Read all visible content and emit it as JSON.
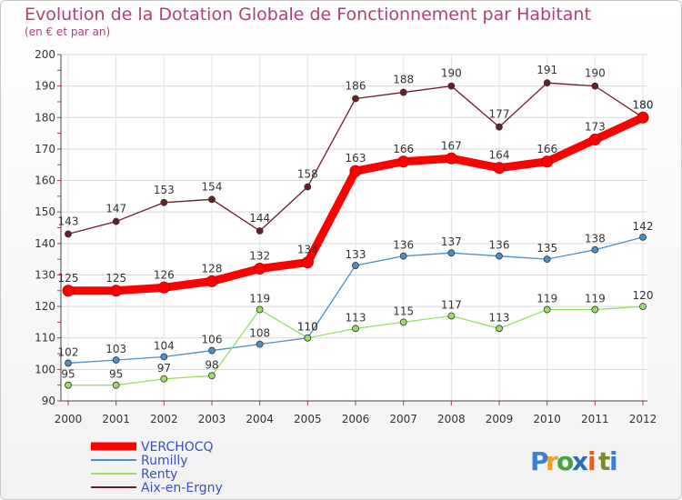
{
  "chart_data": {
    "type": "line",
    "title": "Evolution de la Dotation Globale de Fonctionnement par Habitant",
    "subtitle": "(en € et par an)",
    "xlabel": "",
    "ylabel": "",
    "ylim": [
      90,
      200
    ],
    "yticks": [
      90,
      100,
      110,
      120,
      130,
      140,
      150,
      160,
      170,
      180,
      190,
      200
    ],
    "grid": true,
    "legend_position": "bottom-left",
    "categories": [
      "2000",
      "2001",
      "2002",
      "2003",
      "2004",
      "2005",
      "2006",
      "2007",
      "2008",
      "2009",
      "2010",
      "2011",
      "2012"
    ],
    "series": [
      {
        "name": "VERCHOCQ",
        "color": "#ff0000",
        "values": [
          125,
          125,
          126,
          128,
          132,
          134,
          163,
          166,
          167,
          164,
          166,
          173,
          180
        ]
      },
      {
        "name": "Rumilly",
        "color": "#4a90c8",
        "values": [
          102,
          103,
          104,
          106,
          108,
          110,
          133,
          136,
          137,
          136,
          135,
          138,
          142
        ]
      },
      {
        "name": "Renty",
        "color": "#99dd66",
        "values": [
          95,
          95,
          97,
          98,
          119,
          110,
          113,
          115,
          117,
          113,
          119,
          119,
          120
        ]
      },
      {
        "name": "Aix-en-Ergny",
        "color": "#6b1c24",
        "values": [
          143,
          147,
          153,
          154,
          144,
          158,
          186,
          188,
          190,
          177,
          191,
          190,
          180
        ]
      }
    ]
  },
  "logo": {
    "letters": [
      "P",
      "r",
      "o",
      "x",
      "i",
      "t",
      "i"
    ],
    "colors": [
      "#3a7fd5",
      "#e8a321",
      "#4aa043",
      "#2e6db8",
      "#e85d22",
      "#7b8b2e",
      "#3a7fd5"
    ]
  }
}
